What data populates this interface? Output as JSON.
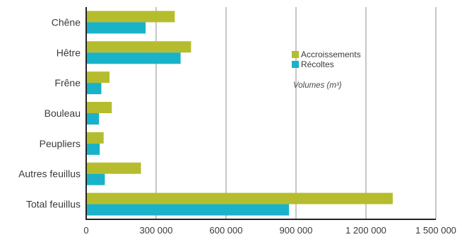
{
  "chart_data": {
    "type": "bar",
    "orientation": "horizontal",
    "categories": [
      "Chêne",
      "Hêtre",
      "Frêne",
      "Bouleau",
      "Peupliers",
      "Autres feuillus",
      "Total feuillus"
    ],
    "series": [
      {
        "name": "Accroissements",
        "color": "#b5bd2e",
        "values": [
          380000,
          450000,
          100000,
          110000,
          75000,
          235000,
          1315000
        ]
      },
      {
        "name": "Récoltes",
        "color": "#19b2c8",
        "values": [
          255000,
          405000,
          65000,
          55000,
          58000,
          80000,
          870000
        ]
      }
    ],
    "title": "",
    "xlabel": "",
    "ylabel": "",
    "unit_note": "Volumes (m³)",
    "xlim": [
      0,
      1500000
    ],
    "xticks": [
      0,
      300000,
      600000,
      900000,
      1200000,
      1500000
    ],
    "xtick_labels": [
      "0",
      "300 000",
      "600 000",
      "900 000",
      "1 200 000",
      "1 500 000"
    ],
    "grid": "vertical",
    "legend_position": "right"
  }
}
